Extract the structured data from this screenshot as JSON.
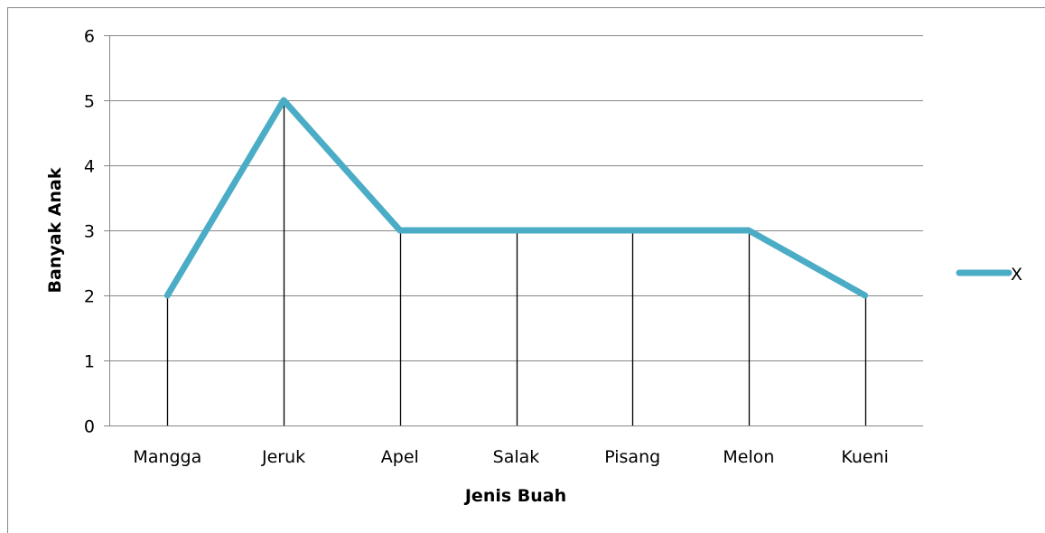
{
  "chart_data": {
    "type": "line",
    "categories": [
      "Mangga",
      "Jeruk",
      "Apel",
      "Salak",
      "Pisang",
      "Melon",
      "Kueni"
    ],
    "series": [
      {
        "name": "X",
        "values": [
          2,
          5,
          3,
          3,
          3,
          3,
          2
        ],
        "color": "#4BACC6"
      }
    ],
    "title": "",
    "xlabel": "Jenis Buah",
    "ylabel": "Banyak Anak",
    "ylim": [
      0,
      6
    ],
    "yticks": [
      0,
      1,
      2,
      3,
      4,
      5,
      6
    ],
    "grid": true,
    "drop_lines": true,
    "legend": "right",
    "colors": {
      "series": "#4BACC6",
      "grid": "#868686",
      "drop_line": "#000000",
      "axis": "#868686"
    }
  }
}
